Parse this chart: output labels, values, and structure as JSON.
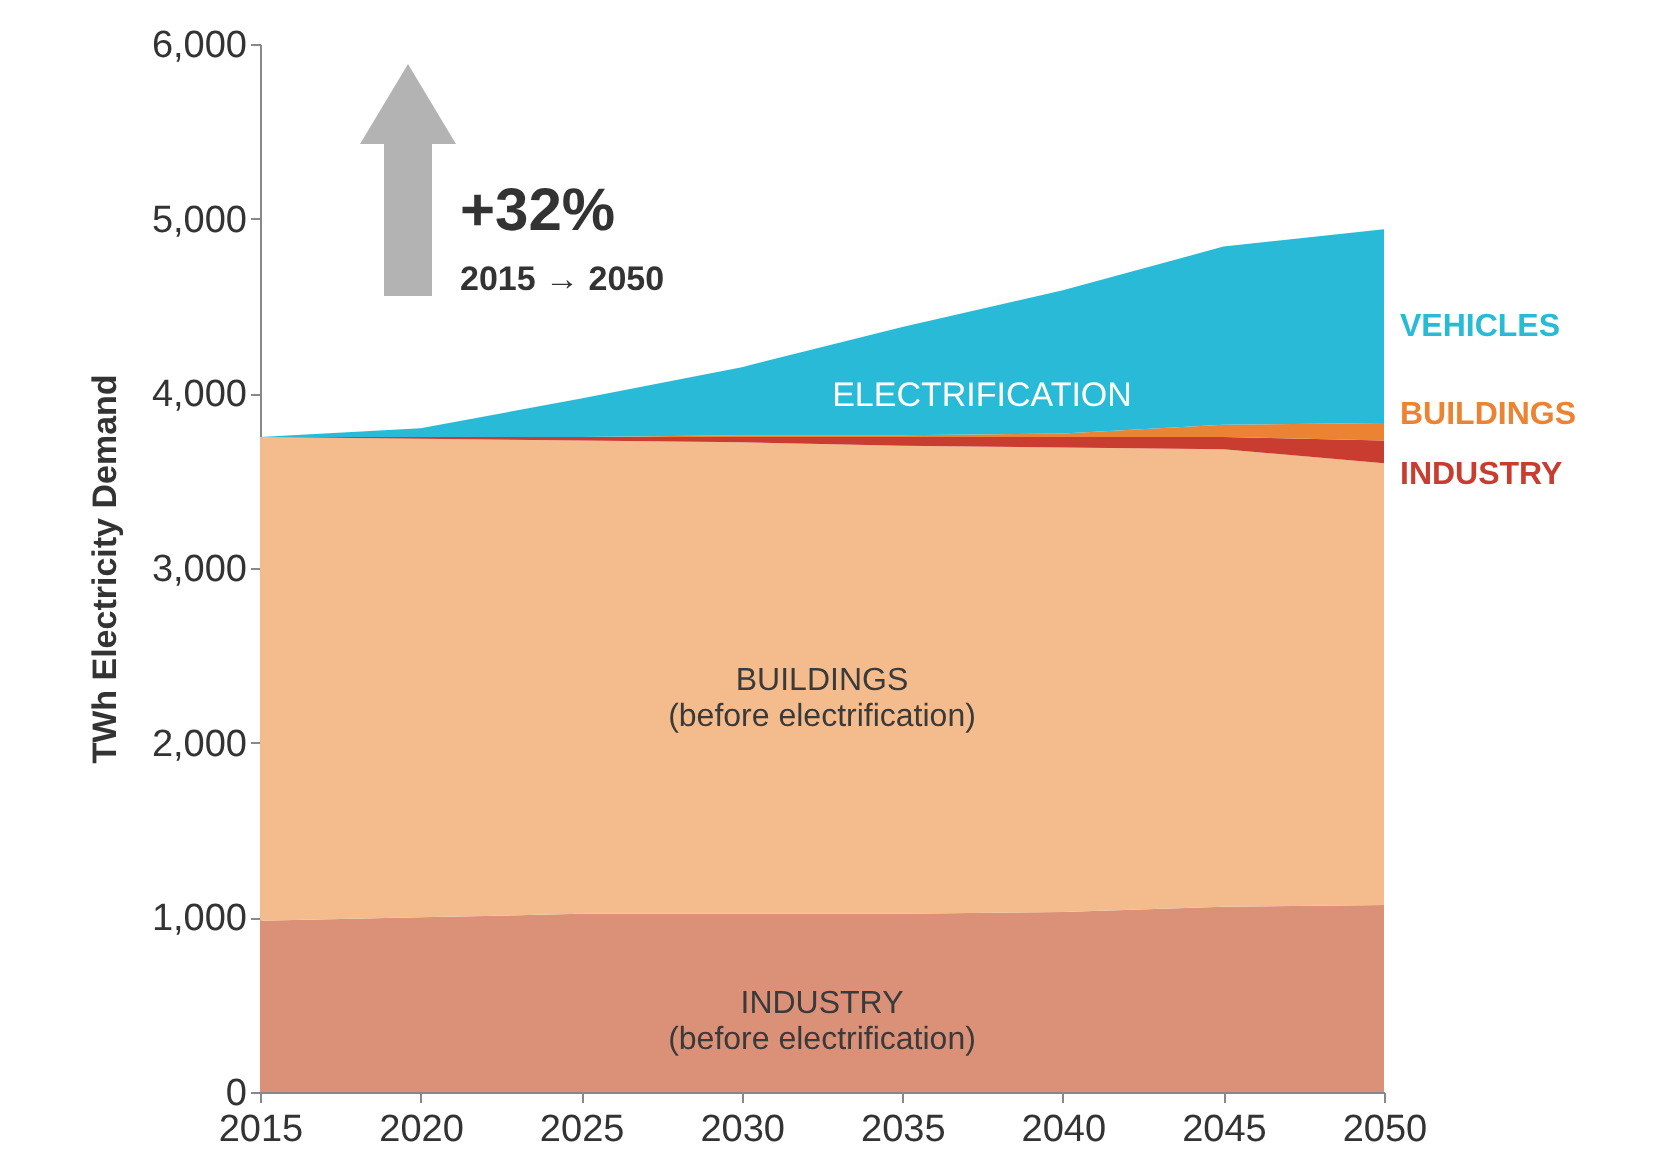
{
  "chart_data": {
    "type": "area",
    "stacked": true,
    "ylabel": "TWh Electricity Demand",
    "x": [
      2015,
      2020,
      2025,
      2030,
      2035,
      2040,
      2045,
      2050
    ],
    "xlim": [
      2015,
      2050
    ],
    "xticks": [
      2015,
      2020,
      2025,
      2030,
      2035,
      2040,
      2045,
      2050
    ],
    "ylim": [
      0,
      6000
    ],
    "yticks": [
      0,
      {
        "value": 1000,
        "label": "1,000"
      },
      {
        "value": 2000,
        "label": "2,000"
      },
      {
        "value": 3000,
        "label": "3,000"
      },
      {
        "value": 4000,
        "label": "4,000"
      },
      {
        "value": 5000,
        "label": "5,000"
      },
      {
        "value": 6000,
        "label": "6,000"
      }
    ],
    "grid": false,
    "legend": false,
    "series": [
      {
        "name": "INDUSTRY\n(before electrification)",
        "color": "#db9078",
        "values": [
          980,
          1000,
          1020,
          1020,
          1020,
          1030,
          1060,
          1070
        ]
      },
      {
        "name": "BUILDINGS\n(before electrification)",
        "color": "#f4bc8d",
        "values": [
          2770,
          2740,
          2710,
          2700,
          2680,
          2660,
          2620,
          2530
        ]
      },
      {
        "name": "INDUSTRY",
        "color": "#c93c30",
        "values": [
          0,
          10,
          20,
          30,
          50,
          60,
          70,
          130
        ]
      },
      {
        "name": "BUILDINGS",
        "color": "#ec8333",
        "values": [
          0,
          0,
          0,
          10,
          10,
          20,
          70,
          100
        ]
      },
      {
        "name": "VEHICLES",
        "color": "#29bad7",
        "values": [
          0,
          50,
          220,
          390,
          620,
          820,
          1020,
          1110
        ]
      }
    ],
    "annotations": [
      "+32%",
      "2015 → 2050",
      "ELECTRIFICATION"
    ]
  }
}
